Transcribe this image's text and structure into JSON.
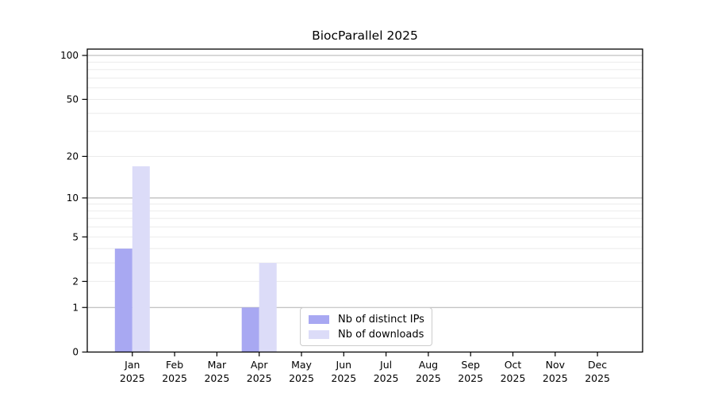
{
  "chart_data": {
    "type": "bar",
    "title": "BiocParallel 2025",
    "categories": [
      {
        "month": "Jan",
        "year": "2025"
      },
      {
        "month": "Feb",
        "year": "2025"
      },
      {
        "month": "Mar",
        "year": "2025"
      },
      {
        "month": "Apr",
        "year": "2025"
      },
      {
        "month": "May",
        "year": "2025"
      },
      {
        "month": "Jun",
        "year": "2025"
      },
      {
        "month": "Jul",
        "year": "2025"
      },
      {
        "month": "Aug",
        "year": "2025"
      },
      {
        "month": "Sep",
        "year": "2025"
      },
      {
        "month": "Oct",
        "year": "2025"
      },
      {
        "month": "Nov",
        "year": "2025"
      },
      {
        "month": "Dec",
        "year": "2025"
      }
    ],
    "series": [
      {
        "key": "distinct-ips",
        "name": "Nb of distinct IPs",
        "color": "#a8a8f2",
        "values": [
          4,
          0,
          0,
          1,
          0,
          0,
          0,
          0,
          0,
          0,
          0,
          0
        ]
      },
      {
        "key": "downloads",
        "name": "Nb of downloads",
        "color": "#dcdcf8",
        "values": [
          17,
          0,
          0,
          3,
          0,
          0,
          0,
          0,
          0,
          0,
          0,
          0
        ]
      }
    ],
    "y_axis": {
      "scale": "log10(1+x)",
      "ylim": [
        0,
        100
      ],
      "ticks": [
        0,
        1,
        2,
        5,
        10,
        20,
        50,
        100
      ],
      "major_gridlines": [
        1,
        10,
        100
      ],
      "minor_gridlines": [
        2,
        3,
        4,
        5,
        6,
        7,
        8,
        9,
        20,
        30,
        40,
        50,
        60,
        70,
        80,
        90
      ]
    },
    "legend": {
      "position": "lower center"
    },
    "colors": {
      "background": "#ffffff",
      "frame": "#000000",
      "text": "#000000",
      "major_grid": "#b0b0b0",
      "minor_grid": "#ebebeb",
      "legend_border": "#cccccc"
    }
  }
}
